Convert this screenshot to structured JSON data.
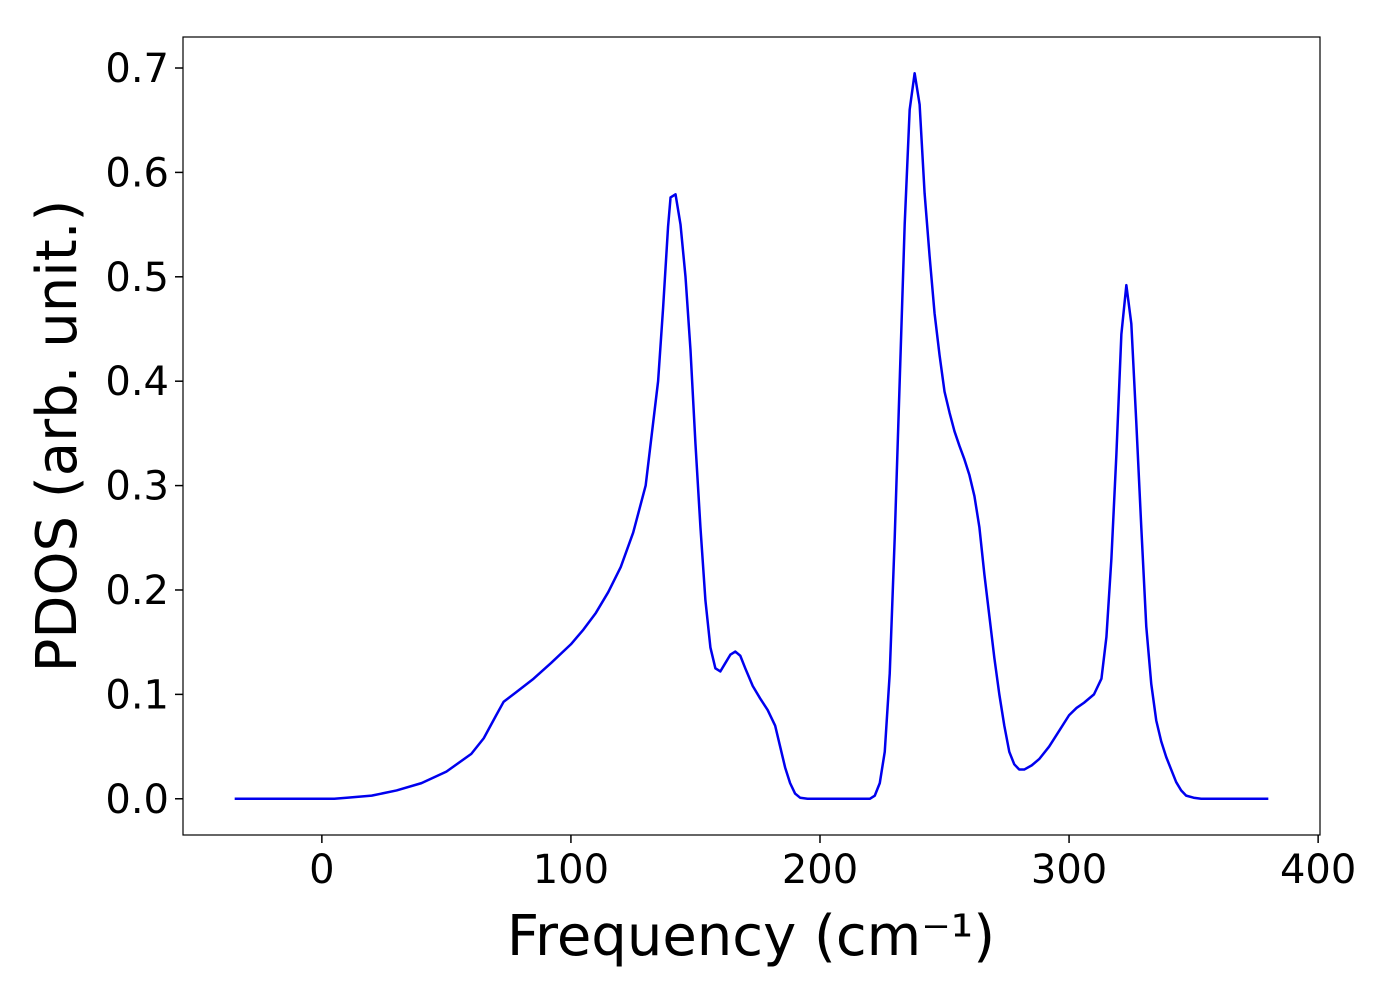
{
  "chart_data": {
    "type": "line",
    "xlabel": "Frequency (cm⁻¹)",
    "ylabel": "PDOS (arb. unit.)",
    "xlim": [
      -55.75,
      400.75
    ],
    "ylim": [
      -0.0347,
      0.7297
    ],
    "xticks": [
      0,
      100,
      200,
      300,
      400
    ],
    "yticks": [
      {
        "value": 0,
        "label": "0.0"
      },
      0.1,
      0.2,
      0.3,
      0.4,
      0.5,
      0.6,
      0.7
    ],
    "series": [
      {
        "color": "#0000ee",
        "x": [
          -35,
          0,
          5,
          10,
          20,
          30,
          40,
          50,
          60,
          65,
          70,
          73,
          78,
          85,
          92,
          100,
          105,
          110,
          115,
          120,
          125,
          130,
          135,
          137,
          139,
          140,
          142,
          144,
          146,
          148,
          150,
          152,
          154,
          156,
          158,
          160,
          162,
          164,
          166,
          168,
          170,
          173,
          176,
          179,
          182,
          184,
          186,
          188,
          190,
          192,
          195,
          200,
          210,
          220,
          222,
          224,
          226,
          228,
          230,
          232,
          234,
          236,
          238,
          240,
          242,
          244,
          246,
          248,
          250,
          252,
          254,
          256,
          258,
          260,
          262,
          264,
          266,
          268,
          270,
          272,
          274,
          276,
          278,
          280,
          282,
          285,
          288,
          292,
          296,
          300,
          303,
          306,
          310,
          313,
          315,
          317,
          319,
          321,
          323,
          325,
          327,
          329,
          331,
          333,
          335,
          337,
          339,
          341,
          343,
          345,
          347,
          350,
          353,
          360,
          380
        ],
        "values": [
          0,
          0,
          0,
          0.001,
          0.003,
          0.008,
          0.015,
          0.026,
          0.043,
          0.058,
          0.08,
          0.093,
          0.102,
          0.115,
          0.13,
          0.148,
          0.162,
          0.178,
          0.198,
          0.222,
          0.255,
          0.3,
          0.4,
          0.47,
          0.548,
          0.576,
          0.579,
          0.55,
          0.5,
          0.43,
          0.34,
          0.26,
          0.19,
          0.145,
          0.125,
          0.122,
          0.13,
          0.138,
          0.141,
          0.137,
          0.125,
          0.108,
          0.096,
          0.085,
          0.07,
          0.05,
          0.03,
          0.015,
          0.005,
          0.001,
          0,
          0,
          0,
          0,
          0.003,
          0.015,
          0.045,
          0.12,
          0.25,
          0.4,
          0.55,
          0.66,
          0.695,
          0.665,
          0.58,
          0.52,
          0.465,
          0.425,
          0.39,
          0.37,
          0.352,
          0.338,
          0.325,
          0.31,
          0.29,
          0.26,
          0.215,
          0.175,
          0.135,
          0.1,
          0.07,
          0.045,
          0.033,
          0.028,
          0.028,
          0.032,
          0.038,
          0.05,
          0.065,
          0.08,
          0.087,
          0.092,
          0.1,
          0.115,
          0.155,
          0.23,
          0.33,
          0.445,
          0.492,
          0.455,
          0.36,
          0.26,
          0.165,
          0.11,
          0.075,
          0.055,
          0.04,
          0.028,
          0.016,
          0.008,
          0.003,
          0.001,
          0,
          0,
          0
        ]
      }
    ]
  }
}
